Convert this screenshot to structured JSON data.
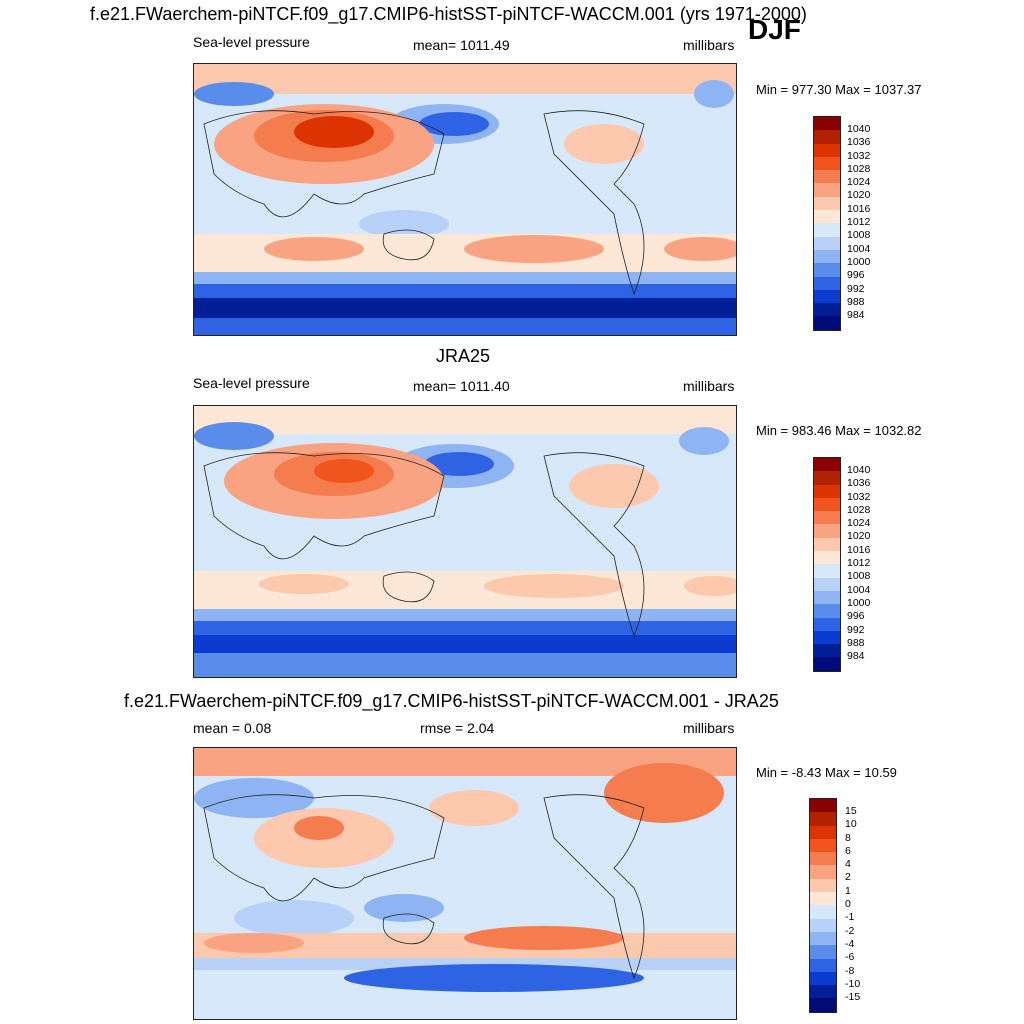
{
  "figure": {
    "title": "f.e21.FWaerchem-piNTCF.f09_g17.CMIP6-histSST-piNTCF-WACCM.001 (yrs 1971-2000)",
    "season": "DJF"
  },
  "panels": [
    {
      "title": "",
      "left_label": "Sea-level pressure",
      "center_label": "mean= 1011.49",
      "right_label": "millibars",
      "minmax": "Min = 977.30 Max = 1037.37",
      "colorbar": [
        "1040",
        "1036",
        "1032",
        "1028",
        "1024",
        "1020",
        "1016",
        "1012",
        "1008",
        "1004",
        "1000",
        "996",
        "992",
        "988",
        "984"
      ]
    },
    {
      "title": "JRA25",
      "left_label": "Sea-level pressure",
      "center_label": "mean= 1011.40",
      "right_label": "millibars",
      "minmax": "Min = 983.46 Max = 1032.82",
      "colorbar": [
        "1040",
        "1036",
        "1032",
        "1028",
        "1024",
        "1020",
        "1016",
        "1012",
        "1008",
        "1004",
        "1000",
        "996",
        "992",
        "988",
        "984"
      ]
    },
    {
      "title": "f.e21.FWaerchem-piNTCF.f09_g17.CMIP6-histSST-piNTCF-WACCM.001 - JRA25",
      "left_label": "mean =   0.08",
      "center_label": "rmse =   2.04",
      "right_label": "millibars",
      "minmax": "Min =  -8.43 Max =  10.59",
      "colorbar": [
        "15",
        "10",
        "8",
        "6",
        "4",
        "2",
        "1",
        "0",
        "-1",
        "-2",
        "-4",
        "-6",
        "-8",
        "-10",
        "-15"
      ]
    }
  ],
  "palette": [
    "#8b0000",
    "#b22200",
    "#dd3300",
    "#f2541e",
    "#f57c4f",
    "#f9a383",
    "#fcc8ae",
    "#fde7d6",
    "#d8e8fb",
    "#b7d1f8",
    "#8eb4f3",
    "#5a8cec",
    "#2e63e3",
    "#0c3bd0",
    "#001f96",
    "#000a78"
  ],
  "chart_data": [
    {
      "type": "heatmap",
      "title": "f.e21.FWaerchem-piNTCF.f09_g17.CMIP6-histSST-piNTCF-WACCM.001 (yrs 1971-2000)",
      "variable": "Sea-level pressure",
      "units": "millibars",
      "season": "DJF",
      "mean": 1011.49,
      "min": 977.3,
      "max": 1037.37,
      "levels": [
        984,
        988,
        992,
        996,
        1000,
        1004,
        1008,
        1012,
        1016,
        1020,
        1024,
        1028,
        1032,
        1036,
        1040
      ]
    },
    {
      "type": "heatmap",
      "title": "JRA25",
      "variable": "Sea-level pressure",
      "units": "millibars",
      "mean": 1011.4,
      "min": 983.46,
      "max": 1032.82,
      "levels": [
        984,
        988,
        992,
        996,
        1000,
        1004,
        1008,
        1012,
        1016,
        1020,
        1024,
        1028,
        1032,
        1036,
        1040
      ]
    },
    {
      "type": "heatmap",
      "title": "f.e21.FWaerchem-piNTCF.f09_g17.CMIP6-histSST-piNTCF-WACCM.001 - JRA25",
      "units": "millibars",
      "mean": 0.08,
      "rmse": 2.04,
      "min": -8.43,
      "max": 10.59,
      "levels": [
        -15,
        -10,
        -8,
        -6,
        -4,
        -2,
        -1,
        0,
        1,
        2,
        4,
        6,
        8,
        10,
        15
      ]
    }
  ]
}
